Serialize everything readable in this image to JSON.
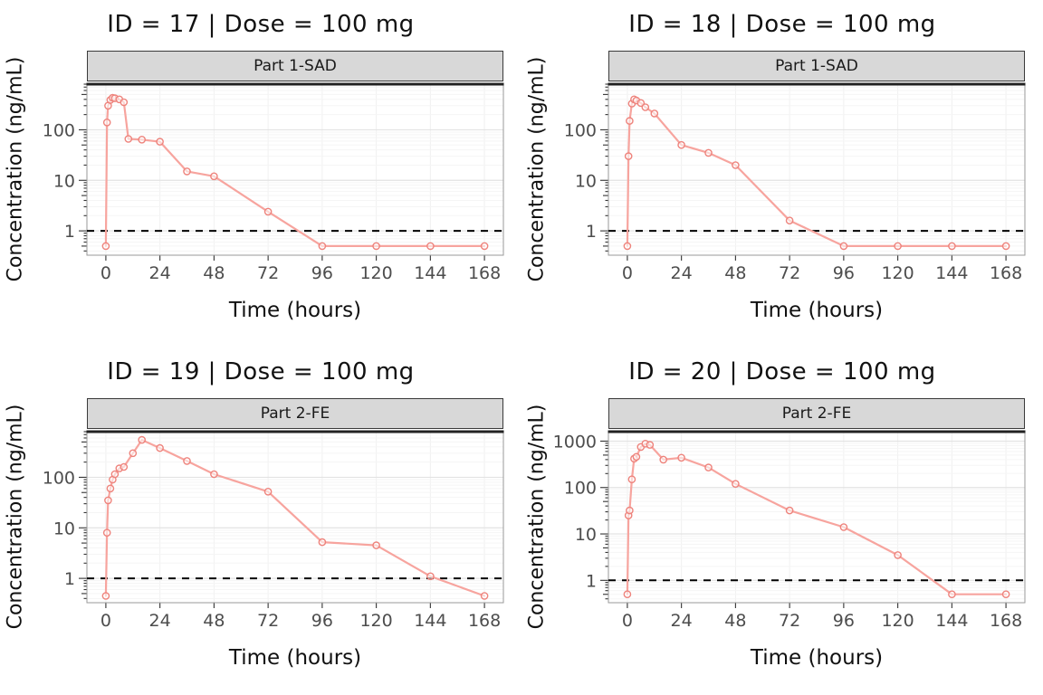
{
  "figure": {
    "background": "#ffffff",
    "strip_background": "#d8d8d8",
    "accent_color": "#f8766d"
  },
  "chart_data": [
    {
      "type": "line",
      "title": "ID = 17 | Dose = 100 mg",
      "facet": "Part 1-SAD",
      "xlabel": "Time (hours)",
      "ylabel": "Concentration (ng/mL)",
      "x_ticks": [
        0,
        24,
        48,
        72,
        96,
        120,
        144,
        168
      ],
      "y_ticks": [
        1,
        10,
        100
      ],
      "xlim": [
        -8.4,
        176.4
      ],
      "ylim": [
        0.33,
        800
      ],
      "y_scale": "log10",
      "lloq_line": 1,
      "grid": true,
      "legend": "none",
      "colors": {
        "line": "#f7a49e",
        "point": "#ee837c",
        "lloq": "#000000"
      },
      "series": [
        {
          "name": "concentration",
          "x": [
            0,
            0.5,
            1,
            2,
            3,
            4,
            6,
            8,
            10,
            16,
            24,
            36,
            48,
            72,
            96,
            120,
            144,
            168
          ],
          "y": [
            0.5,
            140,
            300,
            390,
            430,
            420,
            400,
            350,
            66,
            64,
            58,
            15,
            12,
            2.4,
            0.5,
            0.5,
            0.5,
            0.5
          ]
        }
      ]
    },
    {
      "type": "line",
      "title": "ID = 18 | Dose = 100 mg",
      "facet": "Part 1-SAD",
      "xlabel": "Time (hours)",
      "ylabel": "Concentration (ng/mL)",
      "x_ticks": [
        0,
        24,
        48,
        72,
        96,
        120,
        144,
        168
      ],
      "y_ticks": [
        1,
        10,
        100
      ],
      "xlim": [
        -8.4,
        176.4
      ],
      "ylim": [
        0.33,
        800
      ],
      "y_scale": "log10",
      "lloq_line": 1,
      "grid": true,
      "legend": "none",
      "colors": {
        "line": "#f7a49e",
        "point": "#ee837c",
        "lloq": "#000000"
      },
      "series": [
        {
          "name": "concentration",
          "x": [
            0,
            0.5,
            1,
            2,
            3,
            4,
            6,
            8,
            12,
            24,
            36,
            48,
            72,
            96,
            120,
            144,
            168
          ],
          "y": [
            0.5,
            30,
            150,
            330,
            400,
            380,
            340,
            280,
            210,
            50,
            35,
            20,
            1.6,
            0.5,
            0.5,
            0.5,
            0.5
          ]
        }
      ]
    },
    {
      "type": "line",
      "title": "ID = 19 | Dose = 100 mg",
      "facet": "Part 2-FE",
      "xlabel": "Time (hours)",
      "ylabel": "Concentration (ng/mL)",
      "x_ticks": [
        0,
        24,
        48,
        72,
        96,
        120,
        144,
        168
      ],
      "y_ticks": [
        1,
        10,
        100
      ],
      "xlim": [
        -8.4,
        176.4
      ],
      "ylim": [
        0.33,
        800
      ],
      "y_scale": "log10",
      "lloq_line": 1,
      "grid": true,
      "legend": "none",
      "colors": {
        "line": "#f7a49e",
        "point": "#ee837c",
        "lloq": "#000000"
      },
      "series": [
        {
          "name": "concentration",
          "x": [
            0,
            0.5,
            1,
            2,
            3,
            4,
            6,
            8,
            12,
            16,
            24,
            36,
            48,
            72,
            96,
            120,
            144,
            168
          ],
          "y": [
            0.45,
            8,
            35,
            60,
            90,
            115,
            150,
            160,
            300,
            550,
            380,
            210,
            115,
            52,
            5.2,
            4.5,
            1.1,
            0.45
          ]
        }
      ]
    },
    {
      "type": "line",
      "title": "ID = 20 | Dose = 100 mg",
      "facet": "Part 2-FE",
      "xlabel": "Time (hours)",
      "ylabel": "Concentration (ng/mL)",
      "x_ticks": [
        0,
        24,
        48,
        72,
        96,
        120,
        144,
        168
      ],
      "y_ticks": [
        1,
        10,
        100,
        1000
      ],
      "xlim": [
        -8.4,
        176.4
      ],
      "ylim": [
        0.33,
        1600
      ],
      "y_scale": "log10",
      "lloq_line": 1,
      "grid": true,
      "legend": "none",
      "colors": {
        "line": "#f7a49e",
        "point": "#ee837c",
        "lloq": "#000000"
      },
      "series": [
        {
          "name": "concentration",
          "x": [
            0,
            0.5,
            1,
            2,
            3,
            4,
            6,
            8,
            10,
            16,
            24,
            36,
            48,
            72,
            96,
            120,
            144,
            168
          ],
          "y": [
            0.5,
            25,
            32,
            150,
            420,
            460,
            750,
            880,
            830,
            400,
            440,
            270,
            120,
            32,
            14,
            3.5,
            0.5,
            0.5
          ]
        }
      ]
    }
  ]
}
